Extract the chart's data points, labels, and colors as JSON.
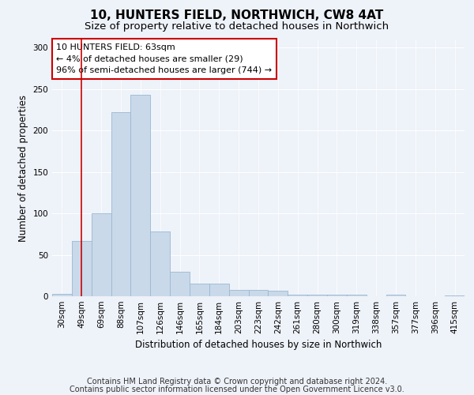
{
  "title": "10, HUNTERS FIELD, NORTHWICH, CW8 4AT",
  "subtitle": "Size of property relative to detached houses in Northwich",
  "xlabel": "Distribution of detached houses by size in Northwich",
  "ylabel": "Number of detached properties",
  "categories": [
    "30sqm",
    "49sqm",
    "69sqm",
    "88sqm",
    "107sqm",
    "126sqm",
    "146sqm",
    "165sqm",
    "184sqm",
    "203sqm",
    "223sqm",
    "242sqm",
    "261sqm",
    "280sqm",
    "300sqm",
    "319sqm",
    "338sqm",
    "357sqm",
    "377sqm",
    "396sqm",
    "415sqm"
  ],
  "values": [
    3,
    67,
    100,
    222,
    243,
    78,
    30,
    15,
    15,
    8,
    8,
    7,
    2,
    2,
    2,
    2,
    0,
    2,
    0,
    0,
    1
  ],
  "bar_color": "#c9d9ea",
  "bar_edge_color": "#9ab8d0",
  "vline_x": 1.0,
  "vline_color": "#cc0000",
  "annotation_box_text": "10 HUNTERS FIELD: 63sqm\n← 4% of detached houses are smaller (29)\n96% of semi-detached houses are larger (744) →",
  "box_edge_color": "#cc0000",
  "ylim": [
    0,
    310
  ],
  "yticks": [
    0,
    50,
    100,
    150,
    200,
    250,
    300
  ],
  "footer_line1": "Contains HM Land Registry data © Crown copyright and database right 2024.",
  "footer_line2": "Contains public sector information licensed under the Open Government Licence v3.0.",
  "background_color": "#eef2f9",
  "plot_background_color": "#eef2f9",
  "title_fontsize": 11,
  "subtitle_fontsize": 9.5,
  "axis_label_fontsize": 8.5,
  "tick_fontsize": 7.5,
  "annotation_fontsize": 8,
  "footer_fontsize": 7
}
